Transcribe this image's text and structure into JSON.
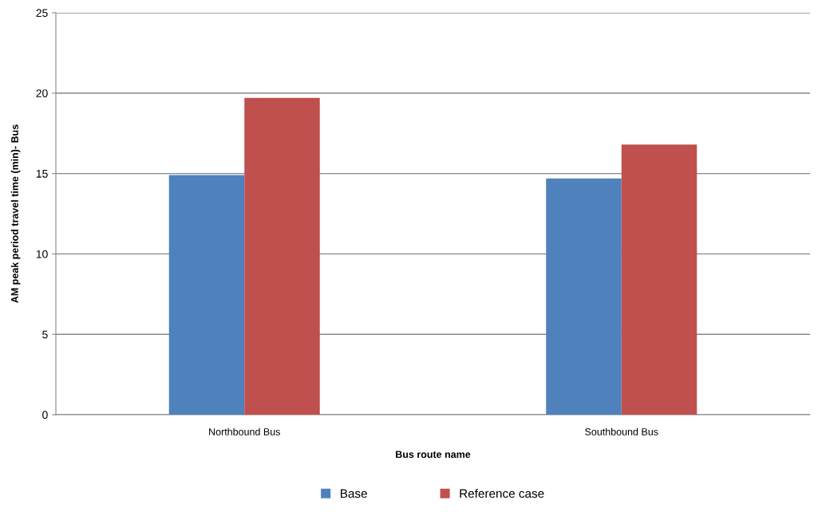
{
  "chart_data": {
    "type": "bar",
    "xlabel": "Bus route name",
    "ylabel": "AM peak period travel time (min)- Bus",
    "categories": [
      "Northbound Bus",
      "Southbound Bus"
    ],
    "series": [
      {
        "name": "Base",
        "color": "#4f81bd",
        "values": [
          14.9,
          14.7
        ]
      },
      {
        "name": "Reference case",
        "color": "#c0504d",
        "values": [
          19.7,
          16.8
        ]
      }
    ],
    "ylim": [
      0,
      25
    ],
    "yticks": [
      0,
      5,
      10,
      15,
      20,
      25
    ],
    "grid": "y",
    "legend": "bottom"
  }
}
